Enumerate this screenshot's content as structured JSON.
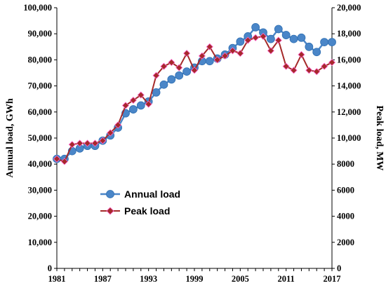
{
  "chart_data": {
    "type": "line",
    "title": "",
    "xlabel": "",
    "ylabel": "Annual load, GWh",
    "y2label": "Peak load, MW",
    "ylim": [
      0,
      100000
    ],
    "y2lim": [
      0,
      20000
    ],
    "xlim": [
      1981,
      2017
    ],
    "x_ticks": [
      "1981",
      "1987",
      "1993",
      "1999",
      "2005",
      "2011",
      "2017"
    ],
    "y_ticks": [
      "0",
      "10,000",
      "20,000",
      "30,000",
      "40,000",
      "50,000",
      "60,000",
      "70,000",
      "80,000",
      "90,000",
      "100,000"
    ],
    "y2_ticks": [
      "0",
      "2000",
      "4000",
      "6000",
      "8000",
      "10,000",
      "12,000",
      "14,000",
      "16,000",
      "18,000",
      "20,000"
    ],
    "grid": false,
    "legend_placement": "lower-left",
    "x": [
      1981,
      1982,
      1983,
      1984,
      1985,
      1986,
      1987,
      1988,
      1989,
      1990,
      1991,
      1992,
      1993,
      1994,
      1995,
      1996,
      1997,
      1998,
      1999,
      2000,
      2001,
      2002,
      2003,
      2004,
      2005,
      2006,
      2007,
      2008,
      2009,
      2010,
      2011,
      2012,
      2013,
      2014,
      2015,
      2016,
      2017
    ],
    "series": [
      {
        "name": "Annual load",
        "axis": "left",
        "color": "#4a86c8",
        "marker": "circle",
        "values": [
          42000,
          42000,
          45000,
          46000,
          47000,
          47000,
          49000,
          51000,
          54000,
          59500,
          61000,
          62500,
          64000,
          67500,
          70500,
          72500,
          74000,
          75500,
          77000,
          79500,
          79500,
          80500,
          82000,
          84500,
          87000,
          89000,
          92500,
          90500,
          88000,
          91800,
          89500,
          88000,
          88500,
          85000,
          83000,
          86800,
          86800
        ]
      },
      {
        "name": "Peak load",
        "axis": "right",
        "color": "#a52a2a",
        "marker": "diamond",
        "values": [
          8400,
          8200,
          9500,
          9600,
          9600,
          9600,
          9800,
          10400,
          11000,
          12500,
          12900,
          13300,
          12600,
          14800,
          15500,
          15800,
          15400,
          16500,
          15200,
          16300,
          17000,
          16000,
          16300,
          16700,
          16500,
          17500,
          17700,
          17800,
          16700,
          17500,
          15500,
          15200,
          16400,
          15200,
          15100,
          15500,
          15800
        ]
      }
    ]
  }
}
